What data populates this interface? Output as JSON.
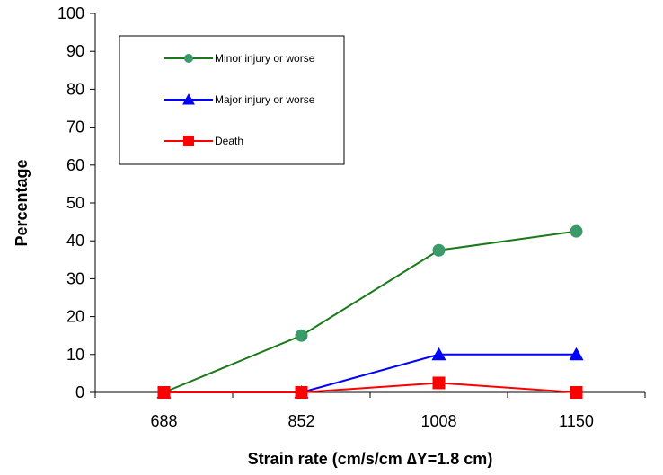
{
  "chart_data": {
    "type": "line",
    "xlabel": "Strain rate (cm/s/cm ∆Y=1.8 cm)",
    "ylabel": "Percentage",
    "categories": [
      "688",
      "852",
      "1008",
      "1150"
    ],
    "ylim": [
      0,
      100
    ],
    "yticks": [
      0,
      10,
      20,
      30,
      40,
      50,
      60,
      70,
      80,
      90,
      100
    ],
    "grid": false,
    "legend_position": "top-left",
    "series": [
      {
        "name": "Minor injury or worse",
        "values": [
          0,
          15,
          37.5,
          42.5
        ],
        "color": "#1a7a1a",
        "marker": "circle",
        "marker_color": "#3a9a6a"
      },
      {
        "name": "Major injury or worse",
        "values": [
          0,
          0,
          10,
          10
        ],
        "color": "#0000ff",
        "marker": "triangle",
        "marker_color": "#0000ff"
      },
      {
        "name": "Death",
        "values": [
          0,
          0,
          2.5,
          0
        ],
        "color": "#ff0000",
        "marker": "square",
        "marker_color": "#ff0000"
      }
    ]
  }
}
